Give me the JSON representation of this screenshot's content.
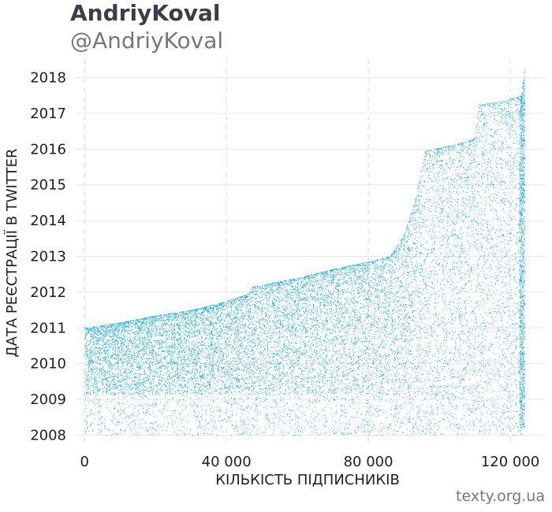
{
  "header": {
    "title": "AndriyKoval",
    "subtitle": "@AndriyKoval"
  },
  "footer": {
    "source": "texty.org.ua"
  },
  "chart_data": {
    "type": "scatter",
    "xlabel": "КІЛЬКІСТЬ ПІДПИСНИКІВ",
    "ylabel": "ДАТА РЕЄСТРАЦІЇ В TWITTER",
    "x_ticks": [
      {
        "value": 0,
        "label": "0"
      },
      {
        "value": 40000,
        "label": "40 000"
      },
      {
        "value": 80000,
        "label": "80 000"
      },
      {
        "value": 120000,
        "label": "120 000"
      }
    ],
    "y_ticks": [
      {
        "value": 2008,
        "label": "2008"
      },
      {
        "value": 2009,
        "label": "2009"
      },
      {
        "value": 2010,
        "label": "2010"
      },
      {
        "value": 2011,
        "label": "2011"
      },
      {
        "value": 2012,
        "label": "2012"
      },
      {
        "value": 2013,
        "label": "2013"
      },
      {
        "value": 2014,
        "label": "2014"
      },
      {
        "value": 2015,
        "label": "2015"
      },
      {
        "value": 2016,
        "label": "2016"
      },
      {
        "value": 2017,
        "label": "2017"
      },
      {
        "value": 2018,
        "label": "2018"
      }
    ],
    "xlim": [
      -2500,
      130000
    ],
    "ylim": [
      2007.7,
      2018.3
    ],
    "grid": true,
    "point_color": "#1aa9e6",
    "upper_envelope": [
      {
        "x": 0,
        "y": 2011.0
      },
      {
        "x": 10000,
        "y": 2011.15
      },
      {
        "x": 20000,
        "y": 2011.35
      },
      {
        "x": 30000,
        "y": 2011.5
      },
      {
        "x": 40000,
        "y": 2011.75
      },
      {
        "x": 46000,
        "y": 2011.95
      },
      {
        "x": 47000,
        "y": 2012.15
      },
      {
        "x": 60000,
        "y": 2012.4
      },
      {
        "x": 70000,
        "y": 2012.65
      },
      {
        "x": 80000,
        "y": 2012.85
      },
      {
        "x": 86000,
        "y": 2013.0
      },
      {
        "x": 90000,
        "y": 2013.6
      },
      {
        "x": 93000,
        "y": 2014.5
      },
      {
        "x": 96000,
        "y": 2015.95
      },
      {
        "x": 105000,
        "y": 2016.15
      },
      {
        "x": 110000,
        "y": 2016.3
      },
      {
        "x": 111000,
        "y": 2017.25
      },
      {
        "x": 118000,
        "y": 2017.35
      },
      {
        "x": 123000,
        "y": 2017.5
      },
      {
        "x": 124000,
        "y": 2018.25
      }
    ],
    "dense_floor": 2009.15,
    "n_points": 124000
  }
}
